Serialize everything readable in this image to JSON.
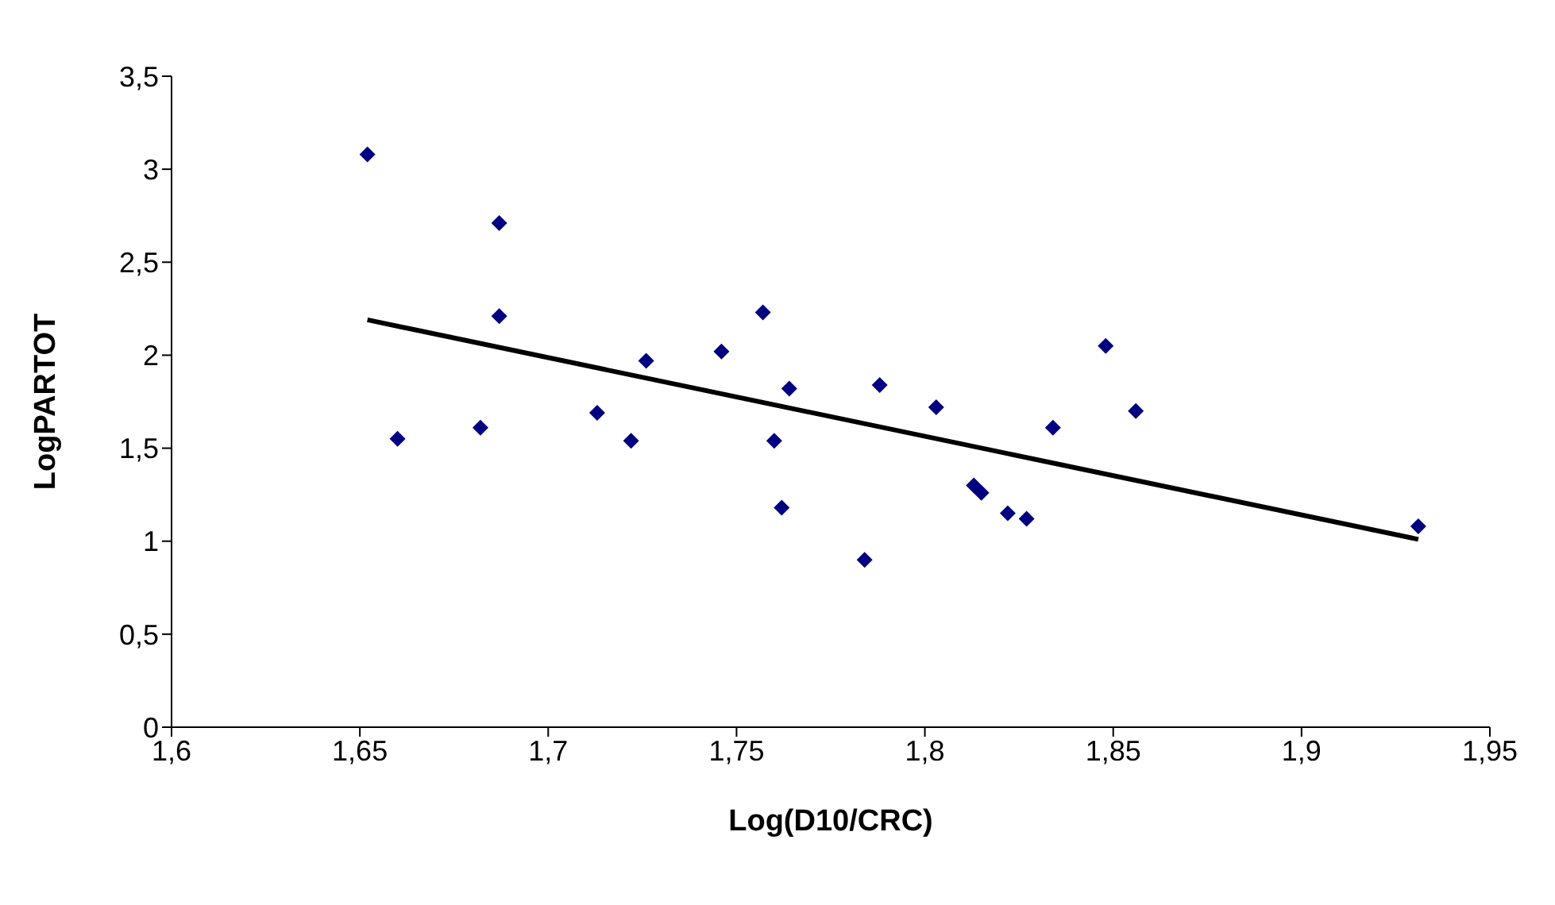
{
  "chart_data": {
    "type": "scatter",
    "xlabel": "Log(D10/CRC)",
    "ylabel": "LogPARTOT",
    "xlim": [
      1.6,
      1.95
    ],
    "xticks": [
      {
        "value": 1.6,
        "label": "1,6"
      },
      {
        "value": 1.65,
        "label": "1,65"
      },
      {
        "value": 1.7,
        "label": "1,7"
      },
      {
        "value": 1.75,
        "label": "1,75"
      },
      {
        "value": 1.8,
        "label": "1,8"
      },
      {
        "value": 1.85,
        "label": "1,85"
      },
      {
        "value": 1.9,
        "label": "1,9"
      },
      {
        "value": 1.95,
        "label": "1,95"
      }
    ],
    "ylim": [
      0,
      3.5
    ],
    "yticks": [
      0,
      {
        "value": 0.5,
        "label": "0,5"
      },
      1,
      {
        "value": 1.5,
        "label": "1,5"
      },
      2,
      {
        "value": 2.5,
        "label": "2,5"
      },
      3,
      {
        "value": 3.5,
        "label": "3,5"
      }
    ],
    "grid": false,
    "legend": false,
    "series": [
      {
        "marker": "diamond",
        "color": "#000080",
        "x": [
          1.652,
          1.66,
          1.682,
          1.687,
          1.687,
          1.713,
          1.722,
          1.726,
          1.746,
          1.757,
          1.76,
          1.762,
          1.764,
          1.784,
          1.788,
          1.803,
          1.813,
          1.815,
          1.822,
          1.827,
          1.834,
          1.848,
          1.856,
          1.931
        ],
        "values": [
          3.08,
          1.55,
          1.61,
          2.71,
          2.21,
          1.69,
          1.54,
          1.97,
          2.02,
          2.23,
          1.54,
          1.18,
          1.82,
          0.9,
          1.84,
          1.72,
          1.3,
          1.26,
          1.15,
          1.12,
          1.61,
          2.05,
          1.7,
          1.08
        ]
      },
      {
        "type": "line",
        "marker": "none",
        "color": "#000000",
        "x": [
          1.652,
          1.931
        ],
        "values": [
          2.19,
          1.01
        ]
      }
    ]
  }
}
